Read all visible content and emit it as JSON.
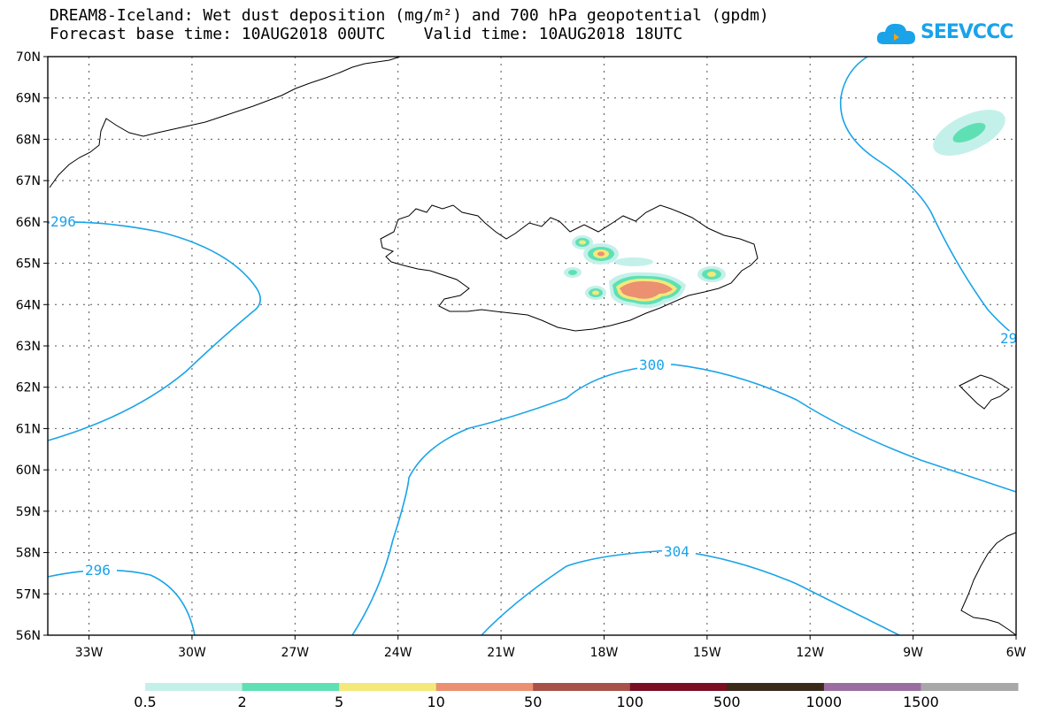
{
  "title": {
    "line1": "DREAM8-Iceland: Wet dust deposition (mg/m²) and 700 hPa geopotential (gpdm)",
    "line2": "Forecast base time: 10AUG2018 00UTC    Valid time: 10AUG2018 18UTC"
  },
  "logo": {
    "text": "SEEVCCC",
    "icon": "cloud-icon"
  },
  "map": {
    "lat_ticks": [
      "70N",
      "69N",
      "68N",
      "67N",
      "66N",
      "65N",
      "64N",
      "63N",
      "62N",
      "61N",
      "60N",
      "59N",
      "58N",
      "57N",
      "56N"
    ],
    "lon_ticks": [
      "33W",
      "30W",
      "27W",
      "24W",
      "21W",
      "18W",
      "15W",
      "12W",
      "9W",
      "6W"
    ],
    "contour_labels": [
      "296",
      "300",
      "304",
      "296",
      "29"
    ]
  },
  "colorbar": {
    "labels": [
      "0.5",
      "2",
      "5",
      "10",
      "50",
      "100",
      "500",
      "1000",
      "1500"
    ],
    "colors": [
      "#c4f0ea",
      "#5ee0b4",
      "#f5e87a",
      "#eb9070",
      "#a85148",
      "#7a0e22",
      "#3a2a1a",
      "#9a6ea0",
      "#a8a8a8"
    ]
  },
  "colors": {
    "contour": "#1aa3e8",
    "coast": "#000000",
    "grid": "#555555"
  }
}
